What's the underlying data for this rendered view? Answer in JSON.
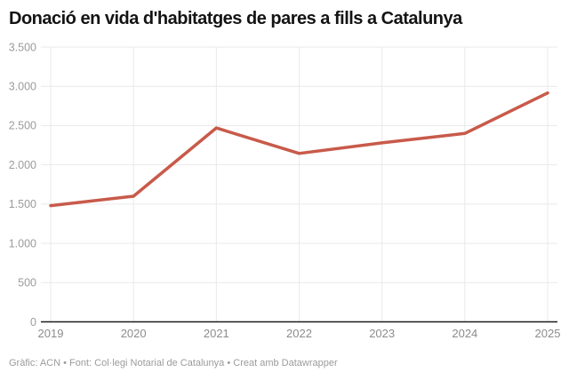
{
  "header": {
    "title": "Donació en vida d'habitatges de pares a fills a Catalunya"
  },
  "chart_data": {
    "type": "line",
    "title": "Donació en vida d'habitatges de pares a fills a Catalunya",
    "categories": [
      "2019",
      "2020",
      "2021",
      "2022",
      "2023",
      "2024",
      "2025"
    ],
    "values": [
      1480,
      1600,
      2470,
      2145,
      2280,
      2400,
      2915
    ],
    "xlabel": "",
    "ylabel": "",
    "ylim": [
      0,
      3500
    ],
    "ytick_interval": 500,
    "ytick_labels": [
      "0",
      "500",
      "1.000",
      "1.500",
      "2.000",
      "2.500",
      "3.000",
      "3.500"
    ],
    "grid": true,
    "legend": false,
    "colors": {
      "line": "#c85a4a",
      "grid": "#e9e9e9",
      "baseline": "#1d1d1d",
      "ytick_text": "#9b9b9b",
      "xtick_text": "#8c8c8c",
      "title_text": "#141414",
      "footer_text": "#9b9b9b"
    }
  },
  "footer": {
    "attribution": "Gràfic: ACN • Font: Col·legi Notarial de Catalunya • Creat amb Datawrapper"
  }
}
